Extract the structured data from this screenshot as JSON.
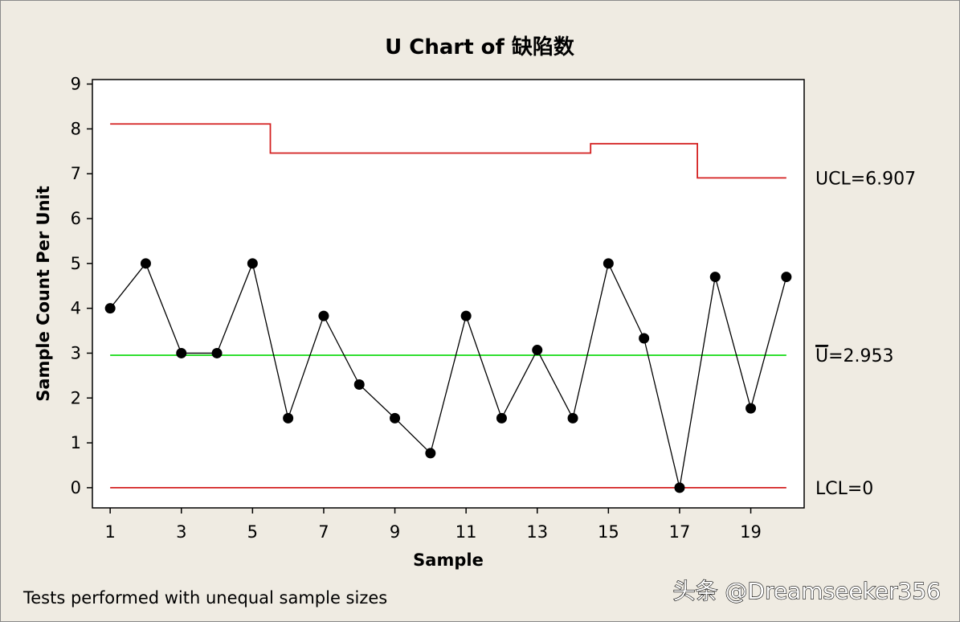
{
  "chart_data": {
    "type": "line",
    "chart_kind": "U chart (attribute control chart)",
    "title": "U Chart of 缺陷数",
    "xlabel": "Sample",
    "ylabel": "Sample Count Per Unit",
    "xlim": [
      0.5,
      20.5
    ],
    "ylim": [
      -0.45,
      9.1
    ],
    "x_ticks": [
      1,
      3,
      5,
      7,
      9,
      11,
      13,
      15,
      17,
      19
    ],
    "y_ticks": [
      0,
      1,
      2,
      3,
      4,
      5,
      6,
      7,
      8,
      9
    ],
    "grid": false,
    "x": [
      1,
      2,
      3,
      4,
      5,
      6,
      7,
      8,
      9,
      10,
      11,
      12,
      13,
      14,
      15,
      16,
      17,
      18,
      19,
      20
    ],
    "series": [
      {
        "values": [
          4.0,
          5.0,
          3.0,
          3.0,
          5.0,
          1.55,
          3.83,
          2.3,
          1.55,
          0.77,
          3.83,
          1.55,
          3.07,
          1.55,
          5.0,
          3.33,
          0.0,
          4.7,
          1.77,
          4.7
        ],
        "color": "#000000"
      }
    ],
    "ucl_steps": [
      {
        "from": 1,
        "to": 5.5,
        "value": 8.11
      },
      {
        "from": 5.5,
        "to": 14.5,
        "value": 7.46
      },
      {
        "from": 14.5,
        "to": 17.5,
        "value": 7.67
      },
      {
        "from": 17.5,
        "to": 20,
        "value": 6.907
      }
    ],
    "center_line": 2.953,
    "lcl": 0,
    "labels": {
      "ucl": "UCL=6.907",
      "center_symbol": "U",
      "center_value": "=2.953",
      "lcl": "LCL=0"
    },
    "colors": {
      "limits": "#d42020",
      "center": "#22dd22",
      "points": "#000000",
      "background": "#efebe2",
      "plot_bg": "#ffffff"
    },
    "footnote": "Tests performed with unequal sample sizes"
  },
  "watermark": "头条 @Dreamseeker356"
}
